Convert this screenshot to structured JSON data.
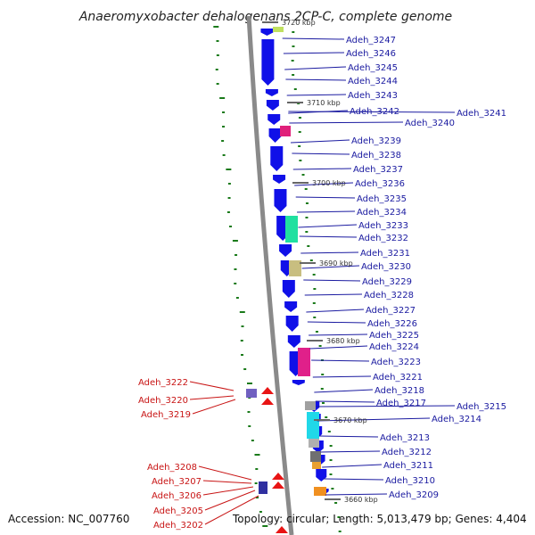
{
  "title": "Anaeromyxobacter dehalogenans 2CP-C, complete genome",
  "footer": {
    "accession": "Accession: NC_007760",
    "summary": "Topology: circular; Length: 5,013,479 bp; Genes: 4,404"
  },
  "colors": {
    "forward_gene": "#1010e8",
    "reverse_gene": "#e81414",
    "forward_label": "#1a1aa0",
    "reverse_label": "#c81414",
    "gc_tick": "#1a7a1a",
    "backbone": "#8a8a8a"
  },
  "kbp_markers": [
    "3720 kbp",
    "3710 kbp",
    "3700 kbp",
    "3690 kbp",
    "3680 kbp",
    "3670 kbp",
    "3660 kbp"
  ],
  "right_labels": [
    "Adeh_3247",
    "Adeh_3246",
    "Adeh_3245",
    "Adeh_3244",
    "Adeh_3243",
    "Adeh_3242",
    "Adeh_3241",
    "Adeh_3240",
    "Adeh_3239",
    "Adeh_3238",
    "Adeh_3237",
    "Adeh_3236",
    "Adeh_3235",
    "Adeh_3234",
    "Adeh_3233",
    "Adeh_3232",
    "Adeh_3231",
    "Adeh_3230",
    "Adeh_3229",
    "Adeh_3228",
    "Adeh_3227",
    "Adeh_3226",
    "Adeh_3225",
    "Adeh_3224",
    "Adeh_3223",
    "Adeh_3221",
    "Adeh_3218",
    "Adeh_3217",
    "Adeh_3215",
    "Adeh_3214",
    "Adeh_3213",
    "Adeh_3212",
    "Adeh_3211",
    "Adeh_3210",
    "Adeh_3209"
  ],
  "left_labels": [
    "Adeh_3222",
    "Adeh_3220",
    "Adeh_3219",
    "Adeh_3208",
    "Adeh_3207",
    "Adeh_3206",
    "Adeh_3205",
    "Adeh_3202"
  ]
}
